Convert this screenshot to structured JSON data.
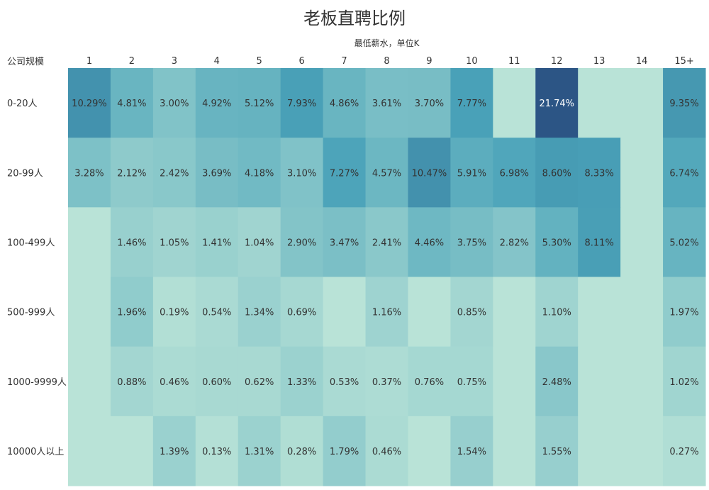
{
  "chart_data": {
    "type": "heatmap",
    "title": "老板直聘比例",
    "xlabel": "最低薪水，单位K",
    "ylabel": "公司规模",
    "columns": [
      "1",
      "2",
      "3",
      "4",
      "5",
      "6",
      "7",
      "8",
      "9",
      "10",
      "11",
      "12",
      "13",
      "14",
      "15+"
    ],
    "rows": [
      "0-20人",
      "20-99人",
      "100-499人",
      "500-999人",
      "1000-9999人",
      "10000人以上"
    ],
    "values": [
      [
        10.29,
        4.81,
        3.0,
        4.92,
        5.12,
        7.93,
        4.86,
        3.61,
        3.7,
        7.77,
        null,
        21.74,
        null,
        null,
        9.35
      ],
      [
        3.28,
        2.12,
        2.42,
        3.69,
        4.18,
        3.1,
        7.27,
        4.57,
        10.47,
        5.91,
        6.98,
        8.6,
        8.33,
        null,
        6.74
      ],
      [
        null,
        1.46,
        1.05,
        1.41,
        1.04,
        2.9,
        3.47,
        2.41,
        4.46,
        3.75,
        2.82,
        5.3,
        8.11,
        null,
        5.02
      ],
      [
        null,
        1.96,
        0.19,
        0.54,
        1.34,
        0.69,
        null,
        1.16,
        null,
        0.85,
        null,
        1.1,
        null,
        null,
        1.97
      ],
      [
        null,
        0.88,
        0.46,
        0.6,
        0.62,
        1.33,
        0.53,
        0.37,
        0.76,
        0.75,
        null,
        2.48,
        null,
        null,
        1.02
      ],
      [
        null,
        null,
        1.39,
        0.13,
        1.31,
        0.28,
        1.79,
        0.46,
        null,
        1.54,
        null,
        1.55,
        null,
        null,
        0.27
      ]
    ],
    "labels": [
      [
        "10.29%",
        "4.81%",
        "3.00%",
        "4.92%",
        "5.12%",
        "7.93%",
        "4.86%",
        "3.61%",
        "3.70%",
        "7.77%",
        "",
        "21.74%",
        "",
        "",
        "9.35%"
      ],
      [
        "3.28%",
        "2.12%",
        "2.42%",
        "3.69%",
        "4.18%",
        "3.10%",
        "7.27%",
        "4.57%",
        "10.47%",
        "5.91%",
        "6.98%",
        "8.60%",
        "8.33%",
        "",
        "6.74%"
      ],
      [
        "",
        "1.46%",
        "1.05%",
        "1.41%",
        "1.04%",
        "2.90%",
        "3.47%",
        "2.41%",
        "4.46%",
        "3.75%",
        "2.82%",
        "5.30%",
        "8.11%",
        "",
        "5.02%"
      ],
      [
        "",
        "1.96%",
        "0.19%",
        "0.54%",
        "1.34%",
        "0.69%",
        "",
        "1.16%",
        "",
        "0.85%",
        "",
        "1.10%",
        "",
        "",
        "1.97%"
      ],
      [
        "",
        "0.88%",
        "0.46%",
        "0.60%",
        "0.62%",
        "1.33%",
        "0.53%",
        "0.37%",
        "0.76%",
        "0.75%",
        "",
        "2.48%",
        "",
        "",
        "1.02%"
      ],
      [
        "",
        "",
        "1.39%",
        "0.13%",
        "1.31%",
        "0.28%",
        "1.79%",
        "0.46%",
        "",
        "1.54%",
        "",
        "1.55%",
        "",
        "",
        "0.27%"
      ]
    ],
    "color_low": "#b9e3d7",
    "color_high": "#2c5585",
    "empty_color": "#b9e3d7",
    "dark_label_color": "#333333",
    "light_label_color": "#ffffff"
  }
}
